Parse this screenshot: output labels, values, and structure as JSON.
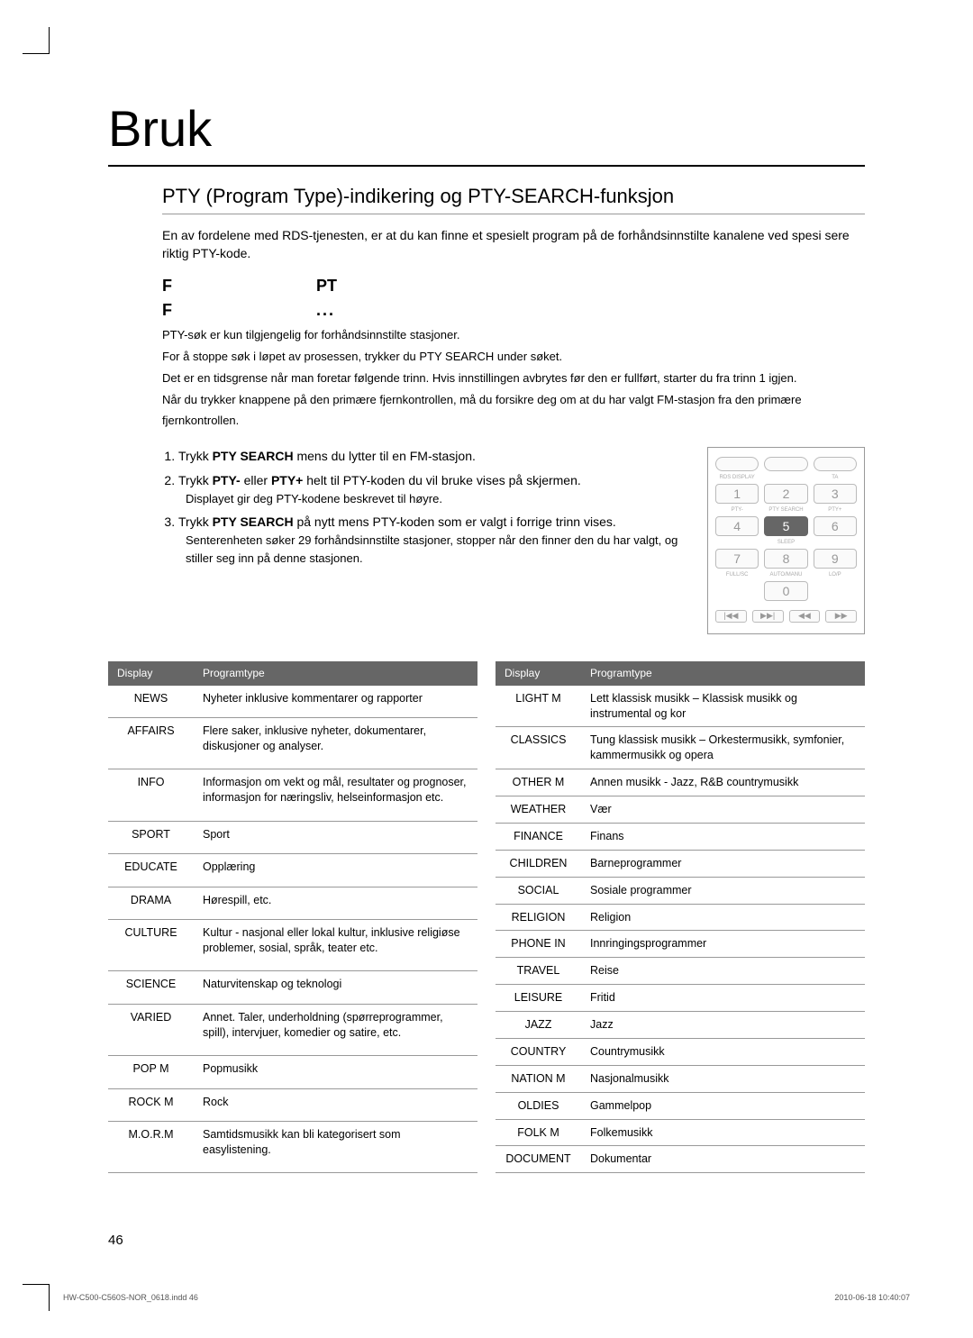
{
  "page": {
    "title": "Bruk",
    "section_title": "PTY (Program Type)-indikering og PTY-SEARCH-funksjon",
    "intro": "En av fordelene med RDS-tjenesten, er at du kan ﬁnne et spesielt program på de forhåndsinnstilte kanalene ved spesi sere riktig PTY-kode.",
    "subhead1_a": "F",
    "subhead1_b": "PT",
    "subhead2_a": "F",
    "subhead2_b": "...",
    "notes": [
      "PTY-søk er kun tilgjengelig for forhåndsinnstilte stasjoner.",
      "For å stoppe søk i løpet av prosessen, trykker du PTY SEARCH under søket.",
      "Det er en tidsgrense når man foretar følgende trinn. Hvis innstillingen avbrytes før den er fullført, starter du fra trinn 1 igjen.",
      "Når du trykker knappene på den primære fjernkontrollen, må du forsikre deg om at du har valgt FM-stasjon fra den primære fjernkontrollen."
    ],
    "instructions": [
      {
        "main_pre": "Trykk ",
        "bold": "PTY SEARCH",
        "main_post": " mens du lytter til en FM-stasjon."
      },
      {
        "main_pre": "Trykk ",
        "bold": "PTY-",
        "mid": " eller ",
        "bold2": "PTY+",
        "main_post": " helt til PTY-koden du vil bruke vises på skjermen.",
        "sub": "Displayet gir deg PTY-kodene beskrevet til høyre."
      },
      {
        "main_pre": "Trykk ",
        "bold": "PTY SEARCH",
        "main_post": " på nytt mens PTY-koden som er valgt i forrige trinn vises.",
        "sub": "Senterenheten søker 29 forhåndsinnstilte stasjoner, stopper når den ﬁnner den du har valgt, og stiller seg inn på denne stasjonen."
      }
    ],
    "remote": {
      "row0_labels": [
        "",
        "",
        ""
      ],
      "row0b": [
        "RDS DISPLAY",
        "",
        "TA"
      ],
      "row1": [
        "1",
        "2",
        "3"
      ],
      "row1_labels": [
        "PTY-",
        "PTY SEARCH",
        "PTY+"
      ],
      "row2": [
        "4",
        "5",
        "6"
      ],
      "row2_mid_highlight": true,
      "row2b_label": "SLEEP",
      "row3": [
        "7",
        "8",
        "9"
      ],
      "row3_labels": [
        "FULL/SC",
        "AUTO/MANU",
        "LO/P"
      ],
      "row4_mid": "0",
      "bottom": [
        "|◀◀",
        "▶▶|",
        "◀◀",
        "▶▶"
      ]
    },
    "table_headers": [
      "Display",
      "Programtype"
    ],
    "table_left": [
      {
        "code": "NEWS",
        "desc": "Nyheter inklusive kommentarer og rapporter"
      },
      {
        "code": "AFFAIRS",
        "desc": "Flere saker, inklusive nyheter, dokumentarer, diskusjoner og analyser."
      },
      {
        "code": "INFO",
        "desc": "Informasjon om vekt og mål, resultater og prognoser, informasjon for næringsliv, helseinformasjon etc."
      },
      {
        "code": "SPORT",
        "desc": "Sport"
      },
      {
        "code": "EDUCATE",
        "desc": "Opplæring"
      },
      {
        "code": "DRAMA",
        "desc": "Hørespill, etc."
      },
      {
        "code": "CULTURE",
        "desc": "Kultur - nasjonal eller lokal kultur, inklusive religiøse problemer, sosial, språk, teater etc."
      },
      {
        "code": "SCIENCE",
        "desc": "Naturvitenskap og teknologi"
      },
      {
        "code": "VARIED",
        "desc": "Annet. Taler, underholdning (spørreprogrammer, spill), intervjuer, komedier og satire, etc."
      },
      {
        "code": "POP M",
        "desc": "Popmusikk"
      },
      {
        "code": "ROCK M",
        "desc": "Rock"
      },
      {
        "code": "M.O.R.M",
        "desc": "Samtidsmusikk kan bli kategorisert som easylistening."
      }
    ],
    "table_right": [
      {
        "code": "LIGHT M",
        "desc": "Lett klassisk musikk – Klassisk musikk og instrumental og kor"
      },
      {
        "code": "CLASSICS",
        "desc": "Tung klassisk musikk – Orkestermusikk, symfonier, kammermusikk og opera"
      },
      {
        "code": "OTHER M",
        "desc": "Annen musikk - Jazz, R&B countrymusikk"
      },
      {
        "code": "WEATHER",
        "desc": "Vær"
      },
      {
        "code": "FINANCE",
        "desc": "Finans"
      },
      {
        "code": "CHILDREN",
        "desc": "Barneprogrammer"
      },
      {
        "code": "SOCIAL",
        "desc": "Sosiale programmer"
      },
      {
        "code": "RELIGION",
        "desc": "Religion"
      },
      {
        "code": "PHONE IN",
        "desc": "Innringingsprogrammer"
      },
      {
        "code": "TRAVEL",
        "desc": "Reise"
      },
      {
        "code": "LEISURE",
        "desc": "Fritid"
      },
      {
        "code": "JAZZ",
        "desc": "Jazz"
      },
      {
        "code": "COUNTRY",
        "desc": "Countrymusikk"
      },
      {
        "code": "NATION M",
        "desc": "Nasjonalmusikk"
      },
      {
        "code": "OLDIES",
        "desc": "Gammelpop"
      },
      {
        "code": "FOLK M",
        "desc": "Folkemusikk"
      },
      {
        "code": "DOCUMENT",
        "desc": "Dokumentar"
      }
    ],
    "page_num": "46",
    "footer_left": "HW-C500-C560S-NOR_0618.indd   46",
    "footer_right": "2010-06-18   10:40:07"
  }
}
